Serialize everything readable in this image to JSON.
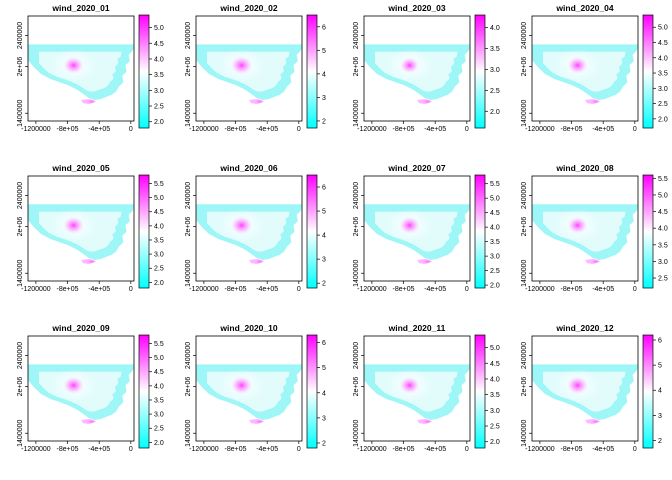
{
  "chart_data": {
    "type": "heatmap",
    "layout": {
      "rows": 3,
      "cols": 4
    },
    "colormap": [
      "#00ffff",
      "#ffffff",
      "#ff00ff"
    ],
    "x_ticks": [
      "-1200000",
      "-8e+05",
      "-4e+05",
      "0"
    ],
    "x_tick_values": [
      -1200000,
      -800000,
      -400000,
      0
    ],
    "xlim": [
      -1300000,
      40000
    ],
    "y_ticks": [
      "1400000",
      "2e+06",
      "2400000"
    ],
    "y_tick_values": [
      1400000,
      2000000,
      2400000
    ],
    "ylim": [
      1300000,
      2650000
    ],
    "panels": [
      {
        "title": "wind_2020_01",
        "zlim": [
          1.8,
          5.4
        ],
        "legend_ticks": [
          "2.0",
          "2.5",
          "3.0",
          "3.5",
          "4.0",
          "4.5",
          "5.0"
        ]
      },
      {
        "title": "wind_2020_02",
        "zlim": [
          1.7,
          6.5
        ],
        "legend_ticks": [
          "2",
          "3",
          "4",
          "5",
          "6"
        ]
      },
      {
        "title": "wind_2020_03",
        "zlim": [
          1.6,
          4.3
        ],
        "legend_ticks": [
          "2.0",
          "2.5",
          "3.0",
          "3.5",
          "4.0"
        ]
      },
      {
        "title": "wind_2020_04",
        "zlim": [
          1.7,
          5.4
        ],
        "legend_ticks": [
          "2.0",
          "2.5",
          "3.0",
          "3.5",
          "4.0",
          "4.5",
          "5.0"
        ]
      },
      {
        "title": "wind_2020_05",
        "zlim": [
          1.8,
          5.8
        ],
        "legend_ticks": [
          "2.0",
          "2.5",
          "3.0",
          "3.5",
          "4.0",
          "4.5",
          "5.0",
          "5.5"
        ]
      },
      {
        "title": "wind_2020_06",
        "zlim": [
          1.8,
          6.5
        ],
        "legend_ticks": [
          "2",
          "3",
          "4",
          "5",
          "6"
        ]
      },
      {
        "title": "wind_2020_07",
        "zlim": [
          1.9,
          5.8
        ],
        "legend_ticks": [
          "2.0",
          "2.5",
          "3.0",
          "3.5",
          "4.0",
          "4.5",
          "5.0",
          "5.5"
        ]
      },
      {
        "title": "wind_2020_08",
        "zlim": [
          2.2,
          5.6
        ],
        "legend_ticks": [
          "2.5",
          "3.0",
          "3.5",
          "4.0",
          "4.5",
          "5.0",
          "5.5"
        ]
      },
      {
        "title": "wind_2020_09",
        "zlim": [
          1.8,
          5.8
        ],
        "legend_ticks": [
          "2.0",
          "2.5",
          "3.0",
          "3.5",
          "4.0",
          "4.5",
          "5.0",
          "5.5"
        ]
      },
      {
        "title": "wind_2020_10",
        "zlim": [
          1.8,
          6.3
        ],
        "legend_ticks": [
          "2",
          "3",
          "4",
          "5",
          "6"
        ]
      },
      {
        "title": "wind_2020_11",
        "zlim": [
          1.8,
          5.4
        ],
        "legend_ticks": [
          "2.0",
          "2.5",
          "3.0",
          "3.5",
          "4.0",
          "4.5",
          "5.0"
        ]
      },
      {
        "title": "wind_2020_12",
        "zlim": [
          1.7,
          6.2
        ],
        "legend_ticks": [
          "2",
          "3",
          "4",
          "5",
          "6"
        ]
      }
    ]
  }
}
